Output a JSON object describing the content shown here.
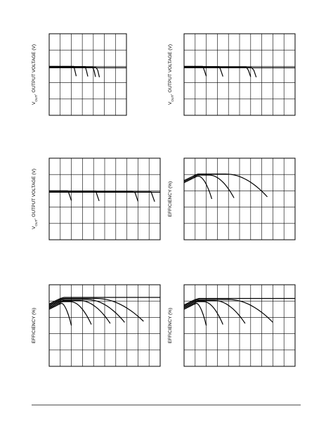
{
  "charts": [
    {
      "y_label": [
        "V",
        "OUT",
        ", OUTPUT VOLTAGE (V)"
      ]
    },
    {
      "y_label": [
        "V",
        "OUT",
        ", OUTPUT VOLTAGE (V)"
      ]
    },
    {
      "y_label": [
        "V",
        "OUT",
        ", OUTPUT VOLTAGE (V)"
      ]
    },
    {
      "y_label": [
        "EFFICIENCY (%)"
      ]
    },
    {
      "y_label": [
        "EFFICIENCY (%)"
      ]
    },
    {
      "y_label": [
        "EFFICIENCY (%)"
      ]
    }
  ]
}
